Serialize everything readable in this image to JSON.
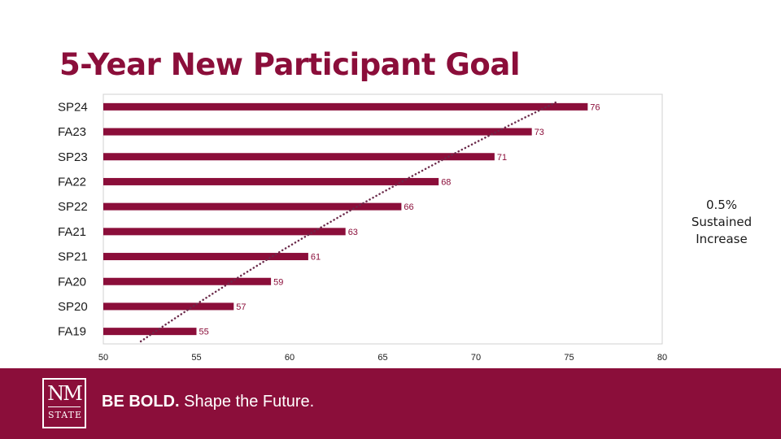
{
  "slide": {
    "title": "5-Year New Participant Goal",
    "annotation": [
      "0.5%",
      "Sustained",
      "Increase"
    ]
  },
  "footer": {
    "logo_top": "NM",
    "logo_bottom": "STATE",
    "tagline_bold": "BE BOLD.",
    "tagline_rest": " Shape the Future."
  },
  "colors": {
    "brand": "#8b0e3a",
    "trendline": "#6b2a4a",
    "footer_bg": "#8b0e3a"
  },
  "chart_data": {
    "type": "bar",
    "orientation": "horizontal",
    "categories": [
      "SP24",
      "FA23",
      "SP23",
      "FA22",
      "SP22",
      "FA21",
      "SP21",
      "FA20",
      "SP20",
      "FA19"
    ],
    "values": [
      76,
      73,
      71,
      68,
      66,
      63,
      61,
      59,
      57,
      55
    ],
    "xlim": [
      50,
      80
    ],
    "x_ticks": [
      50,
      55,
      60,
      65,
      70,
      75,
      80
    ],
    "trendline": "exponential dotted",
    "title": "5-Year New Participant Goal",
    "legend": "none"
  }
}
